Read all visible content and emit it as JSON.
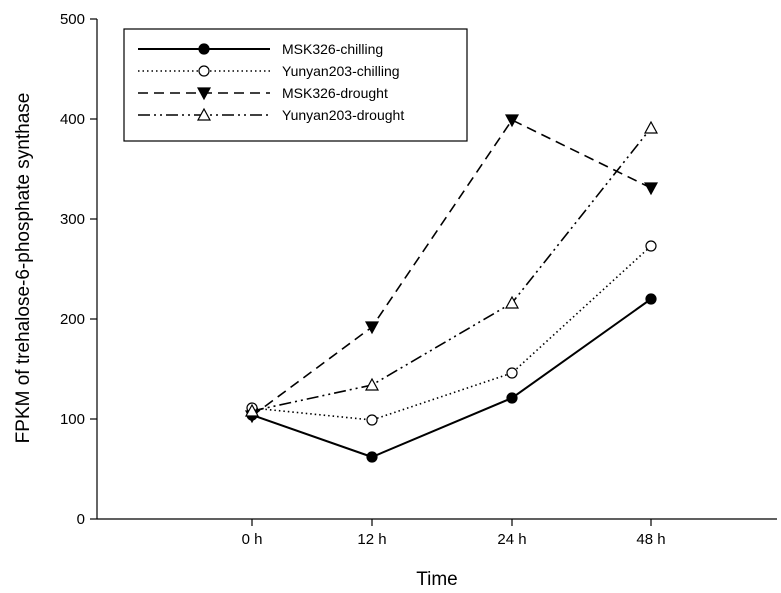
{
  "chart_data": {
    "type": "line",
    "title": "",
    "xlabel": "Time",
    "ylabel": "FPKM of trehalose-6-phosphate synthase",
    "categories": [
      "0 h",
      "12 h",
      "24 h",
      "48 h"
    ],
    "ylim": [
      0,
      500
    ],
    "yticks": [
      "0",
      "100",
      "200",
      "300",
      "400",
      "500"
    ],
    "grid": false,
    "legend_position": "top-left",
    "series": [
      {
        "name": "MSK326-chilling",
        "values": [
          104,
          62,
          121,
          220
        ],
        "line_style": "solid",
        "marker": "filled-circle",
        "color": "#000000"
      },
      {
        "name": "Yunyan203-chilling",
        "values": [
          111,
          99,
          146,
          273
        ],
        "line_style": "dotted",
        "marker": "open-circle",
        "color": "#000000"
      },
      {
        "name": "MSK326-drought",
        "values": [
          103,
          192,
          399,
          331
        ],
        "line_style": "dashed",
        "marker": "filled-triangle-down",
        "color": "#000000"
      },
      {
        "name": "Yunyan203-drought",
        "values": [
          108,
          134,
          216,
          391
        ],
        "line_style": "dash-dot-dot",
        "marker": "open-triangle-up",
        "color": "#000000"
      }
    ]
  }
}
